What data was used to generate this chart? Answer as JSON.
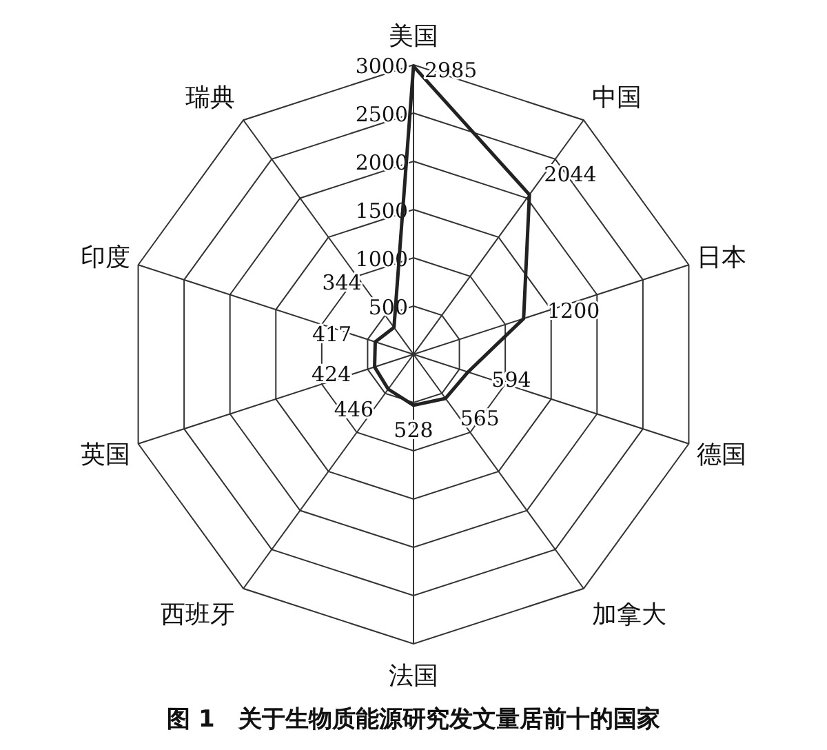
{
  "chart_data": {
    "type": "radar",
    "categories": [
      "美国",
      "中国",
      "日本",
      "德国",
      "加拿大",
      "法国",
      "西班牙",
      "英国",
      "印度",
      "瑞典"
    ],
    "series": [
      {
        "color": "#222222",
        "values": [
          2985,
          2044,
          1200,
          594,
          565,
          528,
          446,
          424,
          417,
          344
        ]
      }
    ],
    "ylim": [
      0,
      3000
    ],
    "yticks": [
      500,
      1000,
      1500,
      2000,
      2500,
      3000
    ],
    "grid": true,
    "data_labels": true,
    "annotations": [
      "图 1　关于生物质能源研究发文量居前十的国家"
    ]
  }
}
